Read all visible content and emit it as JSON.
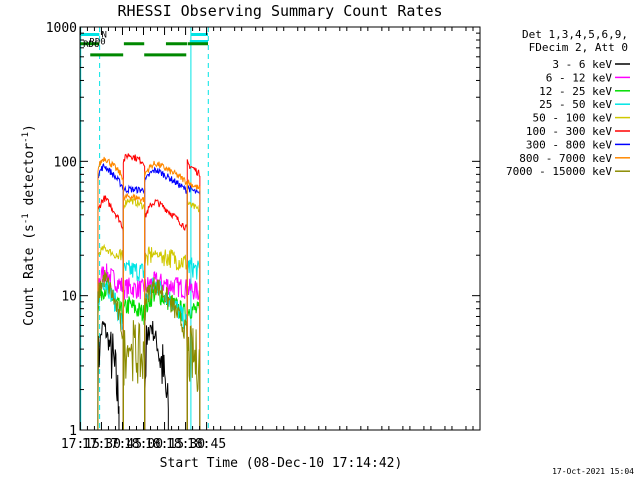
{
  "chart_data": {
    "type": "line",
    "title": "RHESSI Observing Summary Count Rates",
    "xlabel": "Start Time (08-Dec-10 17:14:42)",
    "ylabel_main": "Count Rate (s",
    "ylabel_sup1": "-1",
    "ylabel_mid": " detector",
    "ylabel_sup2": "-1",
    "ylabel_end": ")",
    "y_scale": "log",
    "ylim": [
      1,
      1000
    ],
    "xlim_min": [
      1034.7,
      1320
    ],
    "x_ticks": [
      "17:15",
      "17:30",
      "17:45",
      "18:00",
      "18:15",
      "18:30",
      "18:45"
    ],
    "x_tick_values": [
      1035,
      1050,
      1065,
      1080,
      1095,
      1110,
      1125
    ],
    "y_ticks": [
      "1",
      "10",
      "100",
      "1000"
    ],
    "y_tick_values": [
      1,
      10,
      100,
      1000
    ],
    "legend_header": [
      "Det 1,3,4,5,6,9,",
      "FDecim 2, Att 0"
    ],
    "series": [
      {
        "name": "3 - 6 keV",
        "color": "#000000",
        "segments": [
          [
            1047.5,
            1062.5,
            2.6,
            6.0,
            1.4,
            2.2
          ],
          [
            1080.8,
            1097.7,
            2.0,
            6.0,
            1.2,
            1.6
          ]
        ]
      },
      {
        "name": "6 - 12 keV",
        "color": "#ff00ff",
        "segments": [
          [
            1047.5,
            1065.6,
            12.5,
            14.8,
            11.5,
            11.0
          ],
          [
            1065.6,
            1080.8,
            11.0,
            11.5,
            11.0,
            12.2
          ],
          [
            1080.8,
            1111.2,
            11.5,
            12.6,
            11.2,
            11.0
          ],
          [
            1111.2,
            1120.2,
            11.0,
            11.2,
            10.5,
            10.5
          ]
        ]
      },
      {
        "name": "12 - 25 keV",
        "color": "#00dd00",
        "segments": [
          [
            1047.5,
            1065.6,
            8.5,
            11.5,
            7.0,
            7.0
          ],
          [
            1065.6,
            1080.8,
            7.5,
            8.5,
            7.2,
            8.0
          ],
          [
            1080.8,
            1111.2,
            7.5,
            10.5,
            7.0,
            7.0
          ],
          [
            1111.2,
            1120.2,
            8.0,
            8.0,
            7.5,
            7.5
          ]
        ]
      },
      {
        "name": "25 - 50 keV",
        "color": "#00e5e5",
        "segments": [
          [
            1047.5,
            1065.6,
            9.0,
            13.0,
            5.5,
            6.0
          ],
          [
            1065.6,
            1080.8,
            15.0,
            15.5,
            15.0,
            15.2
          ],
          [
            1080.8,
            1111.2,
            9.0,
            12.0,
            6.0,
            6.0
          ],
          [
            1111.2,
            1120.2,
            16.5,
            16.5,
            15.0,
            15.5
          ]
        ]
      },
      {
        "name": "50 - 100 keV",
        "color": "#d0c800",
        "segments": [
          [
            1047.5,
            1065.6,
            20.0,
            22.5,
            18.0,
            18.0
          ],
          [
            1065.6,
            1080.8,
            46.0,
            52.0,
            46.0,
            46.0
          ],
          [
            1080.8,
            1111.2,
            18.0,
            20.5,
            17.5,
            17.5
          ],
          [
            1111.2,
            1120.2,
            50.0,
            47.0,
            43.0,
            43.0
          ]
        ]
      },
      {
        "name": "100 - 300 keV",
        "color": "#ff0000",
        "segments": [
          [
            1047.5,
            1065.6,
            42.0,
            53.0,
            32.0,
            30.0
          ],
          [
            1065.6,
            1080.8,
            100.0,
            112.0,
            98.0,
            96.0
          ],
          [
            1080.8,
            1111.2,
            38.0,
            50.0,
            31.0,
            30.0
          ],
          [
            1111.2,
            1120.2,
            98.0,
            92.0,
            80.0,
            82.0
          ]
        ]
      },
      {
        "name": "300 - 800 keV",
        "color": "#0000ff",
        "segments": [
          [
            1047.5,
            1065.6,
            78.0,
            92.0,
            64.0,
            60.0
          ],
          [
            1065.6,
            1080.8,
            61.0,
            62.0,
            61.0,
            66.0
          ],
          [
            1080.8,
            1111.2,
            70.0,
            86.0,
            60.0,
            58.0
          ],
          [
            1111.2,
            1120.2,
            65.0,
            62.0,
            56.0,
            58.0
          ]
        ]
      },
      {
        "name": "800 - 7000 keV",
        "color": "#ff8800",
        "segments": [
          [
            1047.5,
            1065.6,
            88.0,
            106.0,
            76.0,
            70.0
          ],
          [
            1065.6,
            1080.8,
            52.0,
            55.0,
            52.0,
            55.0
          ],
          [
            1080.8,
            1111.2,
            80.0,
            96.0,
            70.0,
            66.0
          ],
          [
            1111.2,
            1120.2,
            72.0,
            68.0,
            62.0,
            64.0
          ]
        ]
      },
      {
        "name": "7000 - 15000 keV",
        "color": "#8b8b00",
        "segments": [
          [
            1047.5,
            1065.6,
            9.5,
            13.5,
            5.0,
            3.5
          ],
          [
            1065.6,
            1080.8,
            3.5,
            4.2,
            3.2,
            3.5
          ],
          [
            1080.8,
            1111.2,
            9.0,
            12.0,
            5.0,
            3.5
          ],
          [
            1111.2,
            1120.2,
            3.5,
            3.5,
            3.2,
            3.2
          ]
        ]
      }
    ],
    "flags": [
      {
        "name": "N",
        "color": "#00e5e5",
        "y": 880,
        "bars": [
          [
            1035,
            1048.5
          ],
          [
            1114,
            1126
          ]
        ],
        "marker_x": 1048.6
      },
      {
        "name": "RD0",
        "color": "#00e5e5",
        "y": 780,
        "bars": [
          [
            1113,
            1126
          ]
        ],
        "marker_x": 1040
      },
      {
        "name": "RD6",
        "color": "#008800",
        "y": 750,
        "bars": [
          [
            1035,
            1048.5
          ],
          [
            1066,
            1080.5
          ],
          [
            1096,
            1111
          ],
          [
            1111.5,
            1126
          ]
        ],
        "marker_x": 1035.5
      },
      {
        "name": "",
        "color": "#008800",
        "y": 620,
        "bars": [
          [
            1042,
            1065.5
          ],
          [
            1080.5,
            1110.5
          ]
        ],
        "marker_x": null
      }
    ],
    "vlines_solid": [
      1035.2,
      1113.8
    ],
    "vlines_dashed": [
      1048.7,
      1126.2
    ]
  },
  "footer": "17-Oct-2021 15:04"
}
